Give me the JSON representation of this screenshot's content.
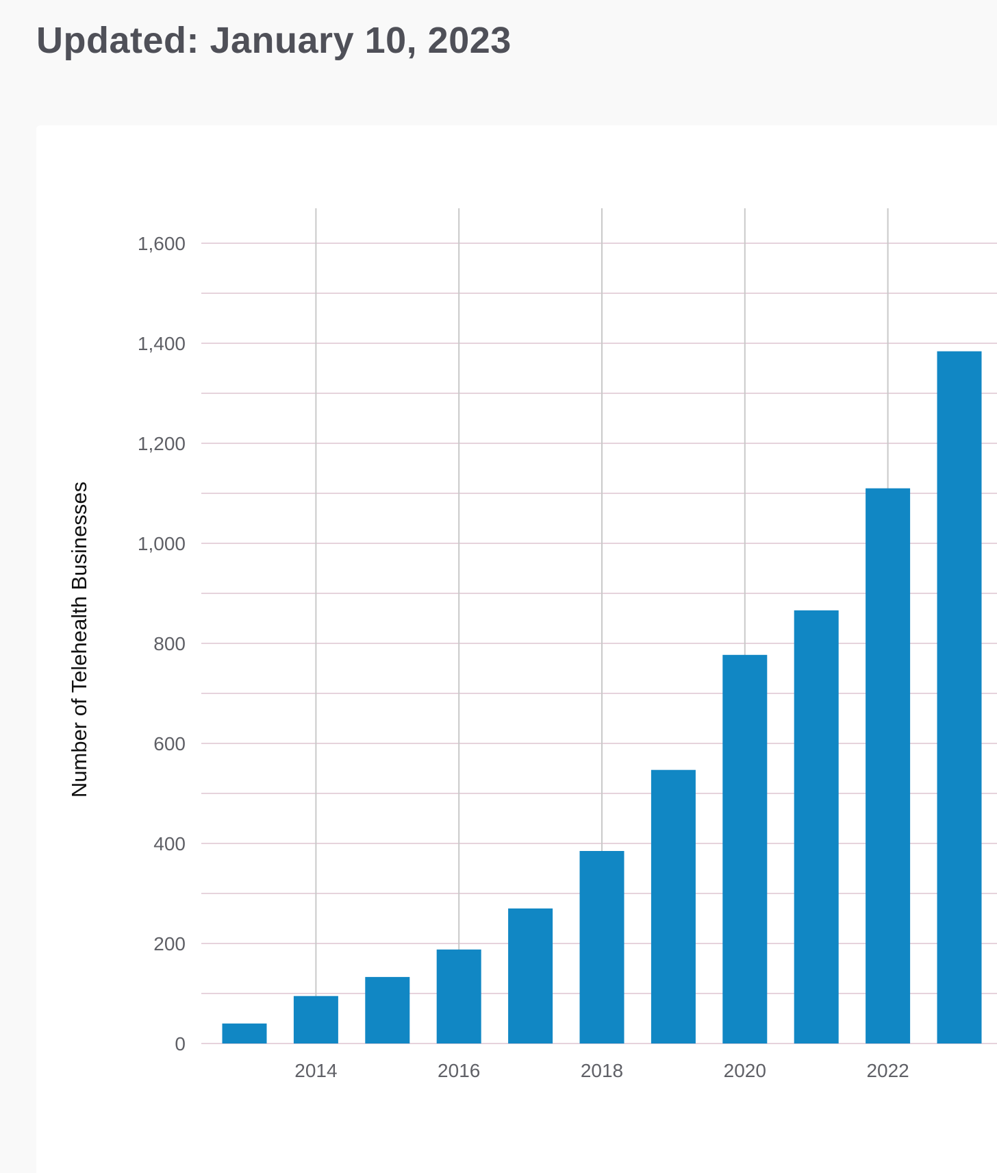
{
  "header": {
    "updated_text": "Updated: January 10, 2023"
  },
  "chart_data": {
    "type": "bar",
    "title": "",
    "xlabel": "",
    "ylabel": "Number of Telehealth Businesses",
    "categories": [
      "2013",
      "2014",
      "2015",
      "2016",
      "2017",
      "2018",
      "2019",
      "2020",
      "2021",
      "2022",
      "2023"
    ],
    "values": [
      40,
      95,
      133,
      188,
      270,
      385,
      547,
      777,
      866,
      1110,
      1384
    ],
    "ylim": [
      0,
      1600
    ],
    "yticks": [
      0,
      200,
      400,
      600,
      800,
      1000,
      1200,
      1400,
      1600
    ],
    "ytick_labels": [
      "0",
      "200",
      "400",
      "600",
      "800",
      "1,000",
      "1,200",
      "1,400",
      "1,600"
    ],
    "xticks": [
      "2014",
      "2016",
      "2018",
      "2020",
      "2022"
    ],
    "bar_color": "#1187c4",
    "gridline_color": "#e6d3dc",
    "vertical_gridline_color": "#c9c9c9",
    "grid": true,
    "legend": "none"
  }
}
